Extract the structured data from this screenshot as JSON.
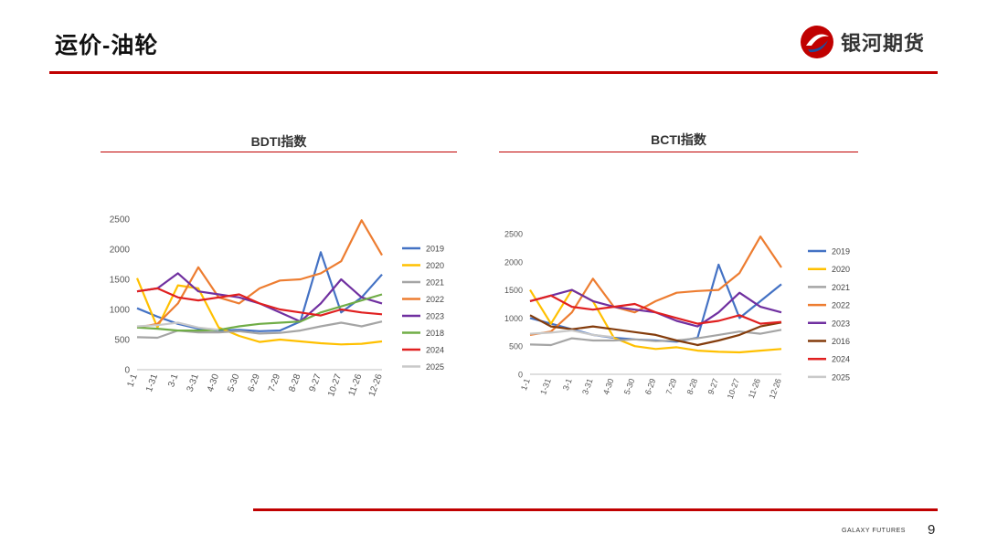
{
  "header": {
    "title": "运价-油轮",
    "brand": "银河期货",
    "logo_colors": [
      "#c00000",
      "#1f4e9c"
    ]
  },
  "footer": {
    "brand": "GALAXY FUTURES",
    "page": "9"
  },
  "chart_data": [
    {
      "type": "line",
      "title": "BDTI指数",
      "ylim": [
        0,
        2500
      ],
      "yticks": [
        "0",
        "500",
        "1000",
        "1500",
        "2000",
        "2500"
      ],
      "x_labels": [
        "1-1",
        "1-31",
        "3-1",
        "3-31",
        "4-30",
        "5-30",
        "6-29",
        "7-29",
        "8-28",
        "9-27",
        "10-27",
        "11-26",
        "12-26"
      ],
      "legend": "right",
      "grid": false,
      "series": [
        {
          "name": "2019",
          "color": "#4472c4",
          "values": [
            1020,
            880,
            760,
            680,
            650,
            660,
            640,
            650,
            800,
            1950,
            950,
            1200,
            1580
          ]
        },
        {
          "name": "2020",
          "color": "#ffc000",
          "values": [
            1520,
            700,
            1400,
            1350,
            700,
            560,
            460,
            500,
            470,
            440,
            420,
            430,
            470
          ]
        },
        {
          "name": "2021",
          "color": "#a5a5a5",
          "values": [
            540,
            530,
            650,
            620,
            620,
            640,
            600,
            610,
            650,
            720,
            780,
            720,
            800
          ]
        },
        {
          "name": "2022",
          "color": "#ed7d31",
          "values": [
            700,
            760,
            1100,
            1700,
            1200,
            1100,
            1350,
            1480,
            1500,
            1600,
            1800,
            2480,
            1900
          ]
        },
        {
          "name": "2023",
          "color": "#7030a0",
          "values": [
            1300,
            1350,
            1600,
            1300,
            1250,
            1200,
            1100,
            950,
            800,
            1100,
            1500,
            1200,
            1100
          ]
        },
        {
          "name": "2018",
          "color": "#70ad47",
          "values": [
            700,
            680,
            650,
            650,
            660,
            720,
            760,
            780,
            800,
            950,
            1050,
            1150,
            1250
          ]
        },
        {
          "name": "2024",
          "color": "#e02020",
          "values": [
            1300,
            1350,
            1200,
            1150,
            1200,
            1250,
            1100,
            1000,
            950,
            900,
            1000,
            950,
            920
          ]
        },
        {
          "name": "2025",
          "color": "#c9c9c9",
          "values": [
            720,
            740,
            780,
            700,
            660
          ]
        }
      ]
    },
    {
      "type": "line",
      "title": "BCTI指数",
      "ylim": [
        0,
        2500
      ],
      "yticks": [
        "0",
        "500",
        "1000",
        "1500",
        "2000",
        "2500"
      ],
      "x_labels": [
        "1-1",
        "1-31",
        "3-1",
        "3-31",
        "4-30",
        "5-30",
        "6-29",
        "7-29",
        "8-28",
        "9-27",
        "10-27",
        "11-26",
        "12-26"
      ],
      "legend": "right",
      "grid": false,
      "series": [
        {
          "name": "2019",
          "color": "#4472c4",
          "values": [
            1000,
            900,
            800,
            700,
            650,
            620,
            600,
            580,
            650,
            1950,
            1000,
            1300,
            1600
          ]
        },
        {
          "name": "2020",
          "color": "#ffc000",
          "values": [
            1500,
            900,
            1500,
            1300,
            650,
            500,
            450,
            480,
            420,
            400,
            390,
            420,
            450
          ]
        },
        {
          "name": "2021",
          "color": "#a5a5a5",
          "values": [
            530,
            520,
            640,
            600,
            600,
            620,
            590,
            600,
            640,
            700,
            760,
            720,
            790
          ]
        },
        {
          "name": "2022",
          "color": "#ed7d31",
          "values": [
            700,
            760,
            1100,
            1700,
            1200,
            1100,
            1300,
            1450,
            1480,
            1500,
            1800,
            2450,
            1900
          ]
        },
        {
          "name": "2023",
          "color": "#7030a0",
          "values": [
            1300,
            1400,
            1500,
            1300,
            1200,
            1150,
            1100,
            950,
            850,
            1100,
            1450,
            1200,
            1100
          ]
        },
        {
          "name": "2016",
          "color": "#843c0c",
          "values": [
            1050,
            850,
            800,
            850,
            800,
            750,
            700,
            600,
            520,
            600,
            700,
            850,
            920
          ]
        },
        {
          "name": "2024",
          "color": "#e02020",
          "values": [
            1300,
            1400,
            1200,
            1150,
            1200,
            1250,
            1100,
            1000,
            900,
            950,
            1050,
            900,
            930
          ]
        },
        {
          "name": "2025",
          "color": "#c9c9c9",
          "values": [
            720,
            740,
            780,
            700,
            660
          ]
        }
      ]
    }
  ]
}
